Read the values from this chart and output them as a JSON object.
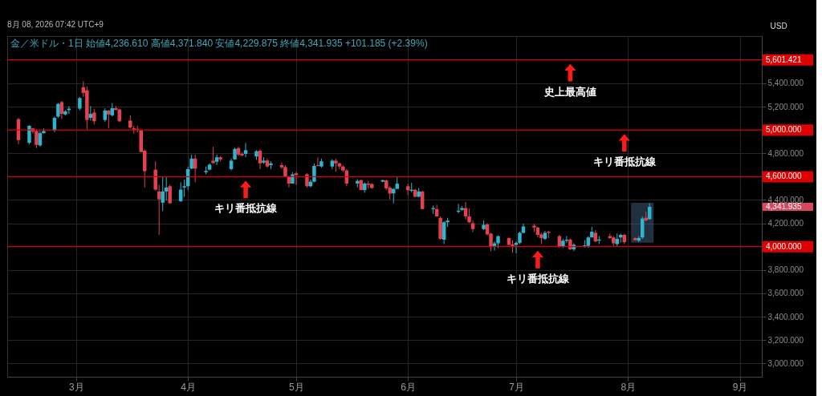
{
  "chart_data": {
    "type": "candlestick",
    "title": "金／米ドル・1日 始値4,236.610 高値4,371.840 安値4,229.875 終値4,341.935 +101.185 (+2.39%)",
    "ylabel": "USD",
    "annotations": [
      "8月 08, 2026 07:42 UTC+9",
      {
        "text": "史上最高値",
        "x": "2026-07-16",
        "y": 5601.421
      },
      {
        "text": "キリ番抵抗線",
        "x": "2026-07-31",
        "y": 5000
      },
      {
        "text": "キリ番抵抗線",
        "x": "2026-04-17",
        "y": 4600
      },
      {
        "text": "キリ番抵抗線",
        "x": "2026-07-07",
        "y": 4000
      },
      "4,341.935"
    ],
    "colors": [
      "#e2414f",
      "#2cb5cc",
      "#e2414f",
      "#e2414f",
      "#2cb5cc",
      "#2cb5cc",
      "#2cb5cc",
      "#2cb5cc",
      "#e2414f",
      "#2cb5cc",
      "#2cb5cc",
      "#2cb5cc",
      "#e2414f",
      "#e2414f",
      "#2cb5cc",
      "#e2414f",
      "#2cb5cc",
      "#e2414f",
      "#2cb5cc",
      "#e2414f",
      "#e2414f",
      "#e2414f",
      "#e2414f",
      "#e2414f",
      "#e2414f",
      "#e2414f",
      "#e2414f",
      "#e2414f",
      "#2cb5cc",
      "#2cb5cc",
      "#e2414f",
      "#2cb5cc",
      "#2cb5cc",
      "#2cb5cc",
      "#2cb5cc",
      "#e2414f",
      "#2cb5cc",
      "#2cb5cc",
      "#e2414f",
      "#2cb5cc",
      "#e2414f",
      "#2cb5cc",
      "#2cb5cc",
      "#e2414f",
      "#e2414f",
      "#2cb5cc",
      "#2cb5cc",
      "#e2414f",
      "#2cb5cc",
      "#e2414f",
      "#2cb5cc",
      "#e2414f",
      "#e2414f",
      "#e2414f",
      "#2cb5cc",
      "#e2414f",
      "#e2414f",
      "#2cb5cc",
      "#2cb5cc",
      "#e2414f",
      "#2cb5cc",
      "#2cb5cc",
      "#e2414f",
      "#e2414f",
      "#e2414f",
      "#e2414f",
      "#2cb5cc",
      "#e2414f",
      "#2cb5cc",
      "#e2414f",
      "#e2414f",
      "#2cb5cc",
      "#e2414f",
      "#e2414f",
      "#2cb5cc",
      "#2cb5cc",
      "#e2414f",
      "#2cb5cc",
      "#e2414f",
      "#2cb5cc",
      "#e2414f",
      "#2cb5cc",
      "#e2414f",
      "#e2414f",
      "#2cb5cc",
      "#2cb5cc",
      "#2cb5cc",
      "#2cb5cc",
      "#e2414f",
      "#e2414f",
      "#e2414f",
      "#2cb5cc",
      "#e2414f",
      "#e2414f",
      "#2cb5cc",
      "#2cb5cc",
      "#e2414f",
      "#e2414f",
      "#2cb5cc",
      "#2cb5cc",
      "#2cb5cc",
      "#e2414f",
      "#e2414f",
      "#e2414f",
      "#2cb5cc",
      "#e2414f",
      "#e2414f",
      "#2cb5cc",
      "#2cb5cc",
      "#e2414f",
      "#2cb5cc",
      "#2cb5cc",
      "#2cb5cc",
      "#2cb5cc",
      "#e2414f",
      "#2cb5cc",
      "#e2414f",
      "#e2414f",
      "#2cb5cc",
      "#2cb5cc",
      "#e2414f",
      "#e2414f",
      "#2cb5cc",
      "#2cb5cc",
      "#e2414f",
      "#2cb5cc"
    ],
    "x": [
      "2026-02-13",
      "2026-02-16",
      "2026-02-17",
      "2026-02-18",
      "2026-02-19",
      "2026-02-20",
      "2026-02-23",
      "2026-02-24",
      "2026-02-25",
      "2026-02-26",
      "2026-02-27",
      "2026-03-02",
      "2026-03-03",
      "2026-03-04",
      "2026-03-05",
      "2026-03-06",
      "2026-03-09",
      "2026-03-10",
      "2026-03-11",
      "2026-03-12",
      "2026-03-13",
      "2026-03-16",
      "2026-03-17",
      "2026-03-18",
      "2026-03-19",
      "2026-03-20",
      "2026-03-23",
      "2026-03-24",
      "2026-03-25",
      "2026-03-26",
      "2026-03-27",
      "2026-03-30",
      "2026-03-31",
      "2026-04-01",
      "2026-04-02",
      "2026-04-03",
      "2026-04-06",
      "2026-04-07",
      "2026-04-08",
      "2026-04-09",
      "2026-04-10",
      "2026-04-13",
      "2026-04-14",
      "2026-04-15",
      "2026-04-16",
      "2026-04-17",
      "2026-04-20",
      "2026-04-21",
      "2026-04-22",
      "2026-04-23",
      "2026-04-24",
      "2026-04-27",
      "2026-04-28",
      "2026-04-29",
      "2026-04-30",
      "2026-05-01",
      "2026-05-04",
      "2026-05-05",
      "2026-05-06",
      "2026-05-07",
      "2026-05-08",
      "2026-05-11",
      "2026-05-12",
      "2026-05-13",
      "2026-05-14",
      "2026-05-15",
      "2026-05-18",
      "2026-05-19",
      "2026-05-20",
      "2026-05-21",
      "2026-05-22",
      "2026-05-25",
      "2026-05-26",
      "2026-05-27",
      "2026-05-28",
      "2026-05-29",
      "2026-06-01",
      "2026-06-02",
      "2026-06-03",
      "2026-06-04",
      "2026-06-05",
      "2026-06-08",
      "2026-06-09",
      "2026-06-10",
      "2026-06-11",
      "2026-06-12",
      "2026-06-15",
      "2026-06-16",
      "2026-06-17",
      "2026-06-18",
      "2026-06-19",
      "2026-06-22",
      "2026-06-23",
      "2026-06-24",
      "2026-06-25",
      "2026-06-26",
      "2026-06-29",
      "2026-06-30",
      "2026-07-01",
      "2026-07-02",
      "2026-07-03",
      "2026-07-06",
      "2026-07-07",
      "2026-07-08",
      "2026-07-09",
      "2026-07-10",
      "2026-07-13",
      "2026-07-14",
      "2026-07-15",
      "2026-07-16",
      "2026-07-17",
      "2026-07-20",
      "2026-07-21",
      "2026-07-22",
      "2026-07-23",
      "2026-07-24",
      "2026-07-27",
      "2026-07-28",
      "2026-07-29",
      "2026-07-30",
      "2026-07-31",
      "2026-08-03",
      "2026-08-04",
      "2026-08-05",
      "2026-08-06",
      "2026-08-07"
    ],
    "ohlc": [
      [
        5093,
        5104,
        4879,
        4913
      ],
      [
        4890,
        5041,
        4879,
        5036
      ],
      [
        5014,
        5018,
        4969,
        4987
      ],
      [
        4991,
        5003,
        4845,
        4872
      ],
      [
        4868,
        4991,
        4856,
        4973
      ],
      [
        4973,
        5014,
        4969,
        4991
      ],
      [
        4996,
        5115,
        4980,
        5104
      ],
      [
        5115,
        5232,
        5104,
        5223
      ],
      [
        5239,
        5250,
        5093,
        5138
      ],
      [
        5133,
        5171,
        5126,
        5160
      ],
      [
        5171,
        5205,
        5138,
        5183
      ],
      [
        5183,
        5284,
        5171,
        5273
      ],
      [
        5367,
        5419,
        5284,
        5318
      ],
      [
        5340,
        5374,
        5003,
        5086
      ],
      [
        5104,
        5205,
        5081,
        5138
      ],
      [
        5149,
        5183,
        5048,
        5075
      ],
      [
        5086,
        5187,
        5070,
        5167
      ],
      [
        5167,
        5171,
        5014,
        5133
      ],
      [
        5126,
        5232,
        5115,
        5187
      ],
      [
        5187,
        5205,
        5171,
        5171
      ],
      [
        5176,
        5183,
        5070,
        5075
      ],
      [
        5081,
        5126,
        5014,
        5021
      ],
      [
        5014,
        5036,
        4969,
        5003
      ],
      [
        5009,
        5036,
        4980,
        5003
      ],
      [
        4998,
        5003,
        4811,
        4811
      ],
      [
        4822,
        4834,
        4507,
        4647
      ],
      [
        4660,
        4732,
        4480,
        4489
      ],
      [
        4473,
        4530,
        4102,
        4406
      ],
      [
        4377,
        4597,
        4305,
        4473
      ],
      [
        4473,
        4597,
        4395,
        4507
      ],
      [
        4518,
        4530,
        4372,
        4372
      ],
      [
        4390,
        4552,
        4383,
        4489
      ],
      [
        4507,
        4575,
        4428,
        4518
      ],
      [
        4518,
        4687,
        4485,
        4665
      ],
      [
        4669,
        4789,
        4665,
        4755
      ],
      [
        4755,
        4789,
        4552,
        4669
      ],
      [
        4638,
        4687,
        4620,
        4649
      ],
      [
        4660,
        4714,
        4653,
        4703
      ],
      [
        4737,
        4856,
        4710,
        4716
      ],
      [
        4728,
        4789,
        4699,
        4766
      ],
      [
        4766,
        4777,
        4732,
        4748
      ],
      [
        4665,
        4755,
        4653,
        4737
      ],
      [
        4748,
        4849,
        4744,
        4838
      ],
      [
        4845,
        4856,
        4777,
        4789
      ],
      [
        4795,
        4811,
        4773,
        4782
      ],
      [
        4795,
        4890,
        4766,
        4827
      ],
      [
        4773,
        4827,
        4744,
        4818
      ],
      [
        4822,
        4834,
        4665,
        4714
      ],
      [
        4721,
        4766,
        4710,
        4737
      ],
      [
        4739,
        4755,
        4676,
        4687
      ],
      [
        4699,
        4732,
        4665,
        4714
      ],
      [
        4699,
        4721,
        4665,
        4680
      ],
      [
        4683,
        4699,
        4597,
        4602
      ],
      [
        4597,
        4608,
        4507,
        4541
      ],
      [
        4541,
        4638,
        4541,
        4620
      ],
      [
        4629,
        4642,
        4530,
        4615
      ],
      [
        4620,
        4631,
        4507,
        4518
      ],
      [
        4518,
        4575,
        4507,
        4557
      ],
      [
        4557,
        4714,
        4552,
        4692
      ],
      [
        4699,
        4766,
        4687,
        4692
      ],
      [
        4687,
        4755,
        4676,
        4732
      ],
      [
        4687,
        4750,
        4665,
        4737
      ],
      [
        4737,
        4755,
        4642,
        4714
      ],
      [
        4714,
        4721,
        4665,
        4687
      ],
      [
        4687,
        4699,
        4642,
        4653
      ],
      [
        4653,
        4665,
        4518,
        4541
      ],
      [
        4541,
        4579,
        4507,
        4563
      ],
      [
        4570,
        4575,
        4484,
        4485
      ],
      [
        4485,
        4552,
        4462,
        4541
      ],
      [
        4541,
        4563,
        4496,
        4530
      ],
      [
        4536,
        4545,
        4496,
        4503
      ],
      [
        4557,
        4575,
        4552,
        4570
      ],
      [
        4568,
        4575,
        4485,
        4500
      ],
      [
        4506,
        4518,
        4405,
        4455
      ],
      [
        4457,
        4502,
        4371,
        4495
      ],
      [
        4495,
        4596,
        4495,
        4540
      ],
      [
        4518,
        4540,
        4443,
        4484
      ],
      [
        4479,
        4547,
        4466,
        4488
      ],
      [
        4488,
        4495,
        4421,
        4428
      ],
      [
        4428,
        4502,
        4421,
        4473
      ],
      [
        4473,
        4479,
        4322,
        4322
      ],
      [
        4322,
        4353,
        4281,
        4331
      ],
      [
        4322,
        4360,
        4259,
        4259
      ],
      [
        4247,
        4259,
        4060,
        4067
      ],
      [
        4060,
        4218,
        4022,
        4209
      ],
      [
        4209,
        4247,
        4169,
        4223
      ],
      [
        4299,
        4367,
        4286,
        4308
      ],
      [
        4315,
        4349,
        4308,
        4331
      ],
      [
        4331,
        4383,
        4236,
        4259
      ],
      [
        4259,
        4326,
        4202,
        4209
      ],
      [
        4202,
        4225,
        4124,
        4151
      ],
      [
        4151,
        4225,
        4142,
        4187
      ],
      [
        4191,
        4202,
        4096,
        4105
      ],
      [
        4112,
        4119,
        3961,
        4000
      ],
      [
        4006,
        4045,
        3966,
        4029
      ],
      [
        4029,
        4096,
        3988,
        4090
      ],
      [
        4074,
        4078,
        4015,
        4015
      ],
      [
        4020,
        4056,
        3948,
        4006
      ],
      [
        4015,
        4045,
        3943,
        4033
      ],
      [
        4033,
        4128,
        4022,
        4119
      ],
      [
        4119,
        4196,
        4112,
        4173
      ],
      [
        4180,
        4196,
        4128,
        4164
      ],
      [
        4164,
        4169,
        4078,
        4101
      ],
      [
        4105,
        4119,
        4022,
        4074
      ],
      [
        4067,
        4135,
        4056,
        4119
      ],
      [
        4128,
        4135,
        4074,
        4119
      ],
      [
        4090,
        4101,
        3993,
        4000
      ],
      [
        4000,
        4067,
        3988,
        4051
      ],
      [
        4051,
        4090,
        4033,
        4060
      ],
      [
        4061,
        4067,
        3971,
        3977
      ],
      [
        3977,
        4029,
        3962,
        4016
      ],
      [
        4002,
        4056,
        3993,
        4011
      ],
      [
        4007,
        4090,
        3990,
        4079
      ],
      [
        4079,
        4169,
        4079,
        4128
      ],
      [
        4119,
        4142,
        4038,
        4045
      ],
      [
        4052,
        4090,
        4022,
        4061
      ],
      [
        4090,
        4112,
        4067,
        4074
      ],
      [
        4079,
        4090,
        4007,
        4029
      ],
      [
        4022,
        4112,
        4000,
        4067
      ],
      [
        4079,
        4112,
        4034,
        4101
      ],
      [
        4101,
        4112,
        4022,
        4038
      ],
      [
        4074,
        4079,
        4052,
        4056
      ],
      [
        4052,
        4090,
        4038,
        4074
      ],
      [
        4079,
        4259,
        4067,
        4241
      ],
      [
        4248,
        4299,
        4218,
        4225
      ],
      [
        4236.61,
        4371.84,
        4229.875,
        4341.935
      ]
    ],
    "xlim": [
      "2026-02-11",
      "2026-09-06"
    ],
    "xticks": [
      {
        "value": "2026-03-01",
        "label": "3月"
      },
      {
        "value": "2026-04-01",
        "label": "4月"
      },
      {
        "value": "2026-05-01",
        "label": "5月"
      },
      {
        "value": "2026-06-01",
        "label": "6月"
      },
      {
        "value": "2026-07-01",
        "label": "7月"
      },
      {
        "value": "2026-08-01",
        "label": "8月"
      },
      {
        "value": "2026-09-01",
        "label": "9月"
      }
    ],
    "ylim": [
      2885,
      5805
    ],
    "yticks": [
      {
        "value": 3000,
        "label": "3,000.000"
      },
      {
        "value": 3200,
        "label": "3,200.000"
      },
      {
        "value": 3400,
        "label": "3,400.000"
      },
      {
        "value": 3600,
        "label": "3,600.000"
      },
      {
        "value": 3800,
        "label": "3,800.000"
      },
      {
        "value": 4200,
        "label": "4,200.000"
      },
      {
        "value": 4400,
        "label": "4,400.000"
      },
      {
        "value": 4800,
        "label": "4,800.000"
      },
      {
        "value": 5200,
        "label": "5,200.000"
      },
      {
        "value": 5400,
        "label": "5,400.000"
      }
    ],
    "ref_lines": [
      {
        "axis": "y",
        "value": 5601.421,
        "label": "5,601.421",
        "color": "#e00000"
      },
      {
        "axis": "y",
        "value": 5000,
        "label": "5,000.000",
        "color": "#e00000"
      },
      {
        "axis": "y",
        "value": 4600,
        "label": "4,600.000",
        "color": "#e00000"
      },
      {
        "axis": "y",
        "value": 4000,
        "label": "4,000.000",
        "color": "#e00000"
      }
    ],
    "bands": [
      {
        "axis": "x",
        "from": "2026-08-02",
        "to": "2026-08-08",
        "color": "#4a6a8c"
      }
    ],
    "grid": true
  }
}
